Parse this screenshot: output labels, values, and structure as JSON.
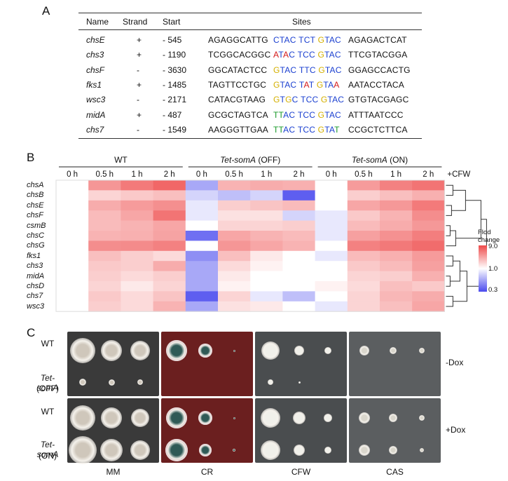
{
  "panelA": {
    "label": "A",
    "headers": [
      "Name",
      "Strand",
      "Start",
      "Sites"
    ],
    "rows": [
      {
        "name": "chsE",
        "strand": "+",
        "start": "- 545",
        "left": "AGAGGCATTG",
        "mid": [
          [
            "CTAC",
            "#1a4fd6"
          ],
          [
            "TCT",
            "#1a4fd6"
          ],
          [
            "GTAC",
            "#d7b200"
          ]
        ],
        "mid_colored": [
          [
            "C",
            "#1a4fd6"
          ],
          [
            "T",
            "#1a4fd6"
          ],
          [
            "A",
            "#1a4fd6"
          ],
          [
            "C",
            "#1a4fd6"
          ]
        ],
        "right": "AGAGACTCAT"
      },
      {
        "name": "chs3",
        "strand": "+",
        "start": "- 1190",
        "left": "TCGGCACGGC",
        "right": "TTCGTACGGA"
      },
      {
        "name": "chsF",
        "strand": "-",
        "start": "- 3630",
        "left": "GGCATACTCC",
        "right": "GGAGCCACTG"
      },
      {
        "name": "fks1",
        "strand": "+",
        "start": "- 1485",
        "left": "TAGTTCCTGC",
        "right": "AATACCTACA"
      },
      {
        "name": "wsc3",
        "strand": "-",
        "start": "- 2171",
        "left": "CATACGTAAG",
        "right": "GTGTACGAGC"
      },
      {
        "name": "midA",
        "strand": "+",
        "start": "- 487",
        "left": "GCGCTAGTCA",
        "right": "ATTTAATCCC"
      },
      {
        "name": "chs7",
        "strand": "-",
        "start": "- 1549",
        "left": "AAGGGTTGAA",
        "right": "CCGCTCTTCA"
      }
    ],
    "sites": [
      [
        [
          "C",
          "b"
        ],
        [
          "T",
          "b"
        ],
        [
          "A",
          "b"
        ],
        [
          "C",
          "b"
        ],
        [
          " ",
          ""
        ],
        [
          "T",
          "b"
        ],
        [
          "C",
          "b"
        ],
        [
          "T",
          "b"
        ],
        [
          " ",
          ""
        ],
        [
          "G",
          "y"
        ],
        [
          "T",
          "b"
        ],
        [
          "A",
          "b"
        ],
        [
          "C",
          "b"
        ]
      ],
      [
        [
          "A",
          "r"
        ],
        [
          "T",
          "b"
        ],
        [
          "A",
          "r"
        ],
        [
          "C",
          "b"
        ],
        [
          " ",
          ""
        ],
        [
          "T",
          "b"
        ],
        [
          "C",
          "b"
        ],
        [
          "C",
          "b"
        ],
        [
          " ",
          ""
        ],
        [
          "G",
          "y"
        ],
        [
          "T",
          "b"
        ],
        [
          "A",
          "b"
        ],
        [
          "C",
          "b"
        ]
      ],
      [
        [
          "G",
          "y"
        ],
        [
          "T",
          "b"
        ],
        [
          "A",
          "b"
        ],
        [
          "C",
          "b"
        ],
        [
          " ",
          ""
        ],
        [
          "T",
          "b"
        ],
        [
          "T",
          "b"
        ],
        [
          "C",
          "b"
        ],
        [
          " ",
          ""
        ],
        [
          "G",
          "y"
        ],
        [
          "T",
          "b"
        ],
        [
          "A",
          "b"
        ],
        [
          "C",
          "b"
        ]
      ],
      [
        [
          "G",
          "y"
        ],
        [
          "T",
          "b"
        ],
        [
          "A",
          "b"
        ],
        [
          "C",
          "b"
        ],
        [
          " ",
          ""
        ],
        [
          "T",
          "b"
        ],
        [
          "A",
          "r"
        ],
        [
          "T",
          "b"
        ],
        [
          " ",
          ""
        ],
        [
          "G",
          "y"
        ],
        [
          "T",
          "b"
        ],
        [
          "A",
          "b"
        ],
        [
          "A",
          "r"
        ]
      ],
      [
        [
          "G",
          "y"
        ],
        [
          "T",
          "b"
        ],
        [
          "G",
          "y"
        ],
        [
          "C",
          "b"
        ],
        [
          " ",
          ""
        ],
        [
          "T",
          "b"
        ],
        [
          "C",
          "b"
        ],
        [
          "C",
          "b"
        ],
        [
          " ",
          ""
        ],
        [
          "G",
          "y"
        ],
        [
          "T",
          "b"
        ],
        [
          "A",
          "b"
        ],
        [
          "C",
          "b"
        ]
      ],
      [
        [
          "T",
          "g"
        ],
        [
          "T",
          "g"
        ],
        [
          "A",
          "b"
        ],
        [
          "C",
          "b"
        ],
        [
          " ",
          ""
        ],
        [
          "T",
          "b"
        ],
        [
          "C",
          "b"
        ],
        [
          "C",
          "b"
        ],
        [
          " ",
          ""
        ],
        [
          "G",
          "y"
        ],
        [
          "T",
          "b"
        ],
        [
          "A",
          "b"
        ],
        [
          "C",
          "b"
        ]
      ],
      [
        [
          "T",
          "g"
        ],
        [
          "T",
          "g"
        ],
        [
          "A",
          "b"
        ],
        [
          "C",
          "b"
        ],
        [
          " ",
          ""
        ],
        [
          "T",
          "b"
        ],
        [
          "C",
          "b"
        ],
        [
          "C",
          "b"
        ],
        [
          " ",
          ""
        ],
        [
          "G",
          "y"
        ],
        [
          "T",
          "b"
        ],
        [
          "A",
          "b"
        ],
        [
          "T",
          "g"
        ]
      ]
    ],
    "site_colors": {
      "b": "#1a3fd0",
      "y": "#d4b000",
      "r": "#d41a1a",
      "g": "#1a9a2a"
    }
  },
  "panelB": {
    "label": "B",
    "groups": [
      "WT",
      "Tet-somA (OFF)",
      "Tet-somA (ON)"
    ],
    "group_italic_part": [
      "",
      "Tet-somA",
      "Tet-somA"
    ],
    "group_suffix": [
      "",
      " (OFF)",
      " (ON)"
    ],
    "timepoints": [
      "0 h",
      "0.5 h",
      "1 h",
      "2 h"
    ],
    "treatment": "+CFW",
    "genes": [
      "chsA",
      "chsB",
      "chsE",
      "chsF",
      "csmB",
      "chsC",
      "chsG",
      "fks1",
      "chs3",
      "midA",
      "chsD",
      "chs7",
      "wsc3"
    ],
    "values": [
      [
        1.0,
        3.2,
        4.6,
        6.0,
        0.6,
        2.2,
        2.4,
        2.3,
        1.0,
        3.0,
        4.2,
        5.0
      ],
      [
        1.0,
        1.5,
        1.7,
        1.9,
        0.8,
        0.7,
        0.8,
        0.35,
        1.0,
        1.6,
        1.9,
        2.3
      ],
      [
        1.0,
        2.4,
        3.0,
        3.5,
        0.9,
        1.6,
        1.8,
        2.0,
        1.0,
        2.6,
        3.1,
        4.6
      ],
      [
        1.0,
        2.0,
        2.6,
        5.0,
        0.9,
        1.3,
        1.3,
        0.8,
        0.9,
        1.7,
        2.2,
        3.6
      ],
      [
        1.0,
        2.0,
        2.2,
        2.6,
        1.0,
        1.5,
        1.5,
        1.6,
        0.9,
        2.0,
        2.4,
        3.1
      ],
      [
        1.0,
        2.2,
        2.3,
        2.7,
        0.4,
        2.6,
        2.2,
        2.0,
        0.9,
        2.8,
        3.4,
        4.4
      ],
      [
        1.0,
        3.6,
        3.7,
        4.2,
        1.0,
        3.2,
        2.6,
        2.2,
        1.0,
        4.2,
        4.7,
        5.6
      ],
      [
        1.0,
        1.9,
        1.6,
        1.4,
        0.5,
        1.9,
        1.2,
        1.0,
        0.9,
        2.0,
        2.3,
        3.0
      ],
      [
        1.0,
        1.7,
        1.6,
        2.4,
        0.6,
        1.4,
        1.1,
        1.0,
        1.0,
        1.7,
        2.0,
        2.8
      ],
      [
        1.0,
        1.6,
        1.4,
        1.6,
        0.6,
        1.2,
        1.0,
        1.0,
        1.0,
        1.5,
        1.6,
        2.3
      ],
      [
        1.0,
        1.5,
        1.2,
        1.5,
        0.6,
        1.1,
        1.0,
        1.0,
        1.1,
        1.4,
        1.9,
        1.7
      ],
      [
        1.0,
        1.7,
        1.4,
        1.8,
        0.35,
        1.5,
        0.9,
        0.7,
        1.0,
        1.5,
        2.1,
        2.4
      ],
      [
        1.0,
        1.6,
        1.4,
        2.2,
        0.6,
        1.3,
        1.2,
        1.0,
        0.9,
        1.5,
        1.9,
        2.6
      ]
    ],
    "legend": {
      "title_line1": "Flod",
      "title_line2": "change",
      "max": "9.0",
      "mid": "1.0",
      "min": "0.3"
    },
    "colors": {
      "high": "#ee4a4a",
      "mid": "#ffffff",
      "low": "#4a4aee"
    }
  },
  "panelC": {
    "label": "C",
    "rows": [
      {
        "label_line1": "WT",
        "label_line2": "",
        "italic": false
      },
      {
        "label_line1": "Tet-somA",
        "label_line2": "(OFF)",
        "italic": true
      },
      {
        "label_line1": "WT",
        "label_line2": "",
        "italic": false
      },
      {
        "label_line1": "Tet-somA",
        "label_line2": "(ON)",
        "italic": true
      }
    ],
    "media": [
      "MM",
      "CR",
      "CFW",
      "CAS"
    ],
    "conditions": [
      "-Dox",
      "+Dox"
    ]
  }
}
